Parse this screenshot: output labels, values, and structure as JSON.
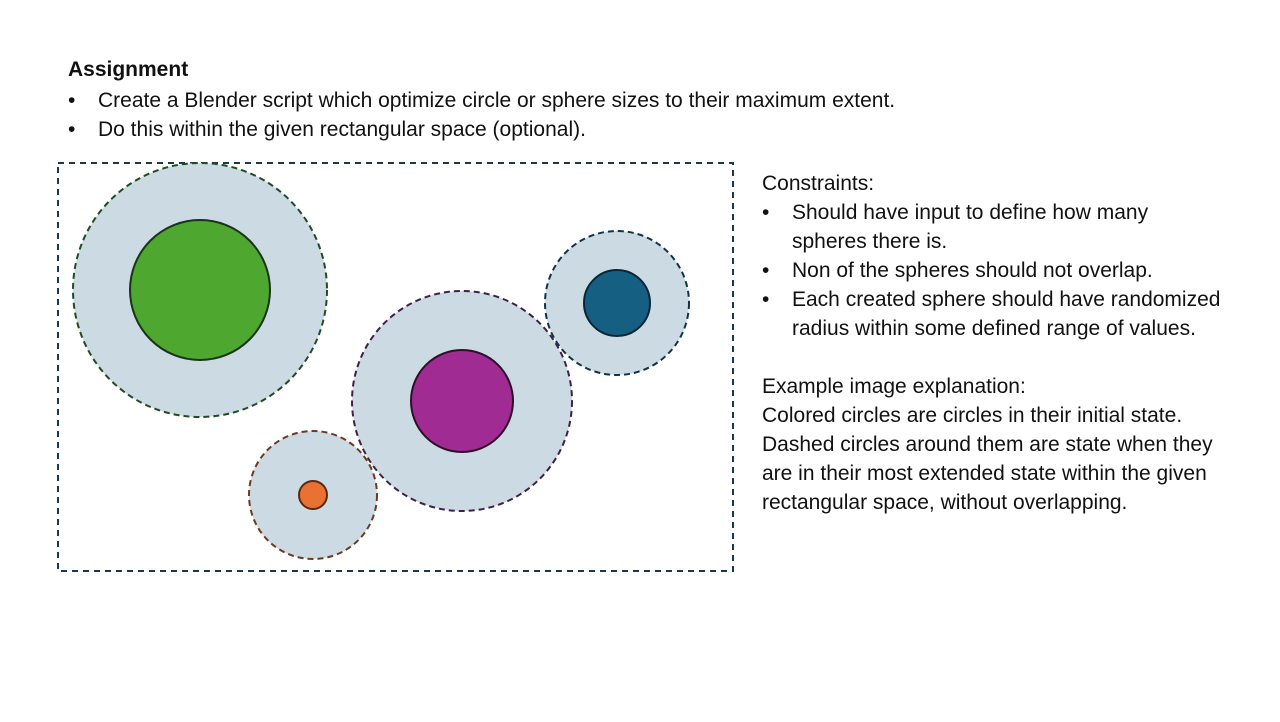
{
  "heading": "Assignment",
  "assignment_bullets": [
    "Create a Blender script which optimize circle or sphere sizes to their maximum extent.",
    "Do this within the given rectangular space (optional)."
  ],
  "constraints": {
    "title": "Constraints:",
    "items": [
      "Should have input to define how many spheres there is.",
      "Non of the spheres should not overlap.",
      "Each created sphere should have randomized radius within some defined range of values."
    ]
  },
  "explanation": {
    "title": "Example image explanation:",
    "paragraphs": [
      "Colored circles are circles in their initial state.",
      "Dashed circles around them are state when they are in their most extended state within the given rectangular space, without overlapping."
    ]
  },
  "colors": {
    "green": "#4ea72e",
    "magenta": "#a02b93",
    "blue": "#156082",
    "orange": "#e97132",
    "extended_fill": "#ccdae3"
  }
}
